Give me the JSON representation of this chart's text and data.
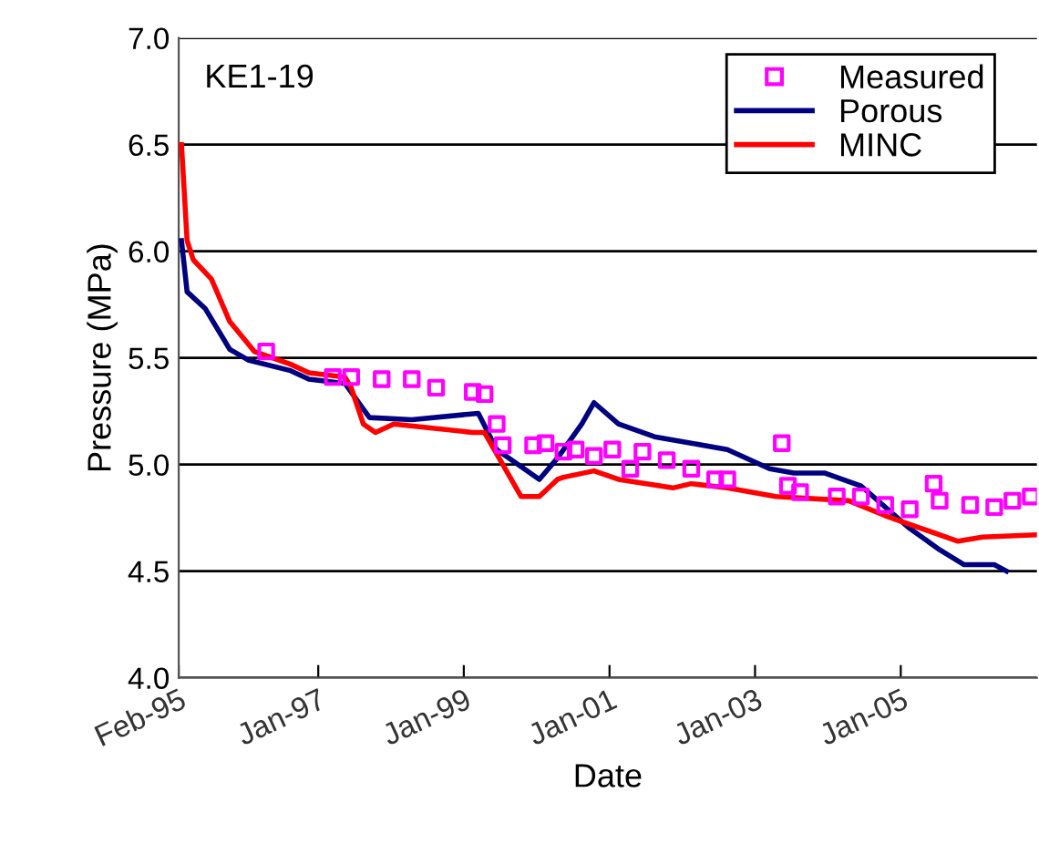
{
  "chart_data": {
    "type": "line",
    "xlabel": "Date",
    "ylabel": "Pressure (MPa)",
    "annotations": [
      "KE1-19"
    ],
    "xlim": [
      "1995-02-01",
      "2006-11-15"
    ],
    "xticks": [
      {
        "value": "1995-02-01",
        "label": "Feb-95"
      },
      {
        "value": "1997-01-01",
        "label": "Jan-97"
      },
      {
        "value": "1999-01-01",
        "label": "Jan-99"
      },
      {
        "value": "2001-01-01",
        "label": "Jan-01"
      },
      {
        "value": "2003-01-01",
        "label": "Jan-03"
      },
      {
        "value": "2005-01-01",
        "label": "Jan-05"
      }
    ],
    "ylim": [
      4.0,
      7.0
    ],
    "yticks": [
      {
        "value": 4,
        "label": "4.0"
      },
      {
        "value": 4.5,
        "label": "4.5"
      },
      {
        "value": 5,
        "label": "5.0"
      },
      {
        "value": 5.5,
        "label": "5.5"
      },
      {
        "value": 6,
        "label": "6.0"
      },
      {
        "value": 6.5,
        "label": "6.5"
      },
      {
        "value": 7,
        "label": "7.0"
      }
    ],
    "grid": "y",
    "legend": "top right",
    "series": [
      {
        "name": "Measured",
        "type": "scatter",
        "marker": "square",
        "color": "#ff00ff",
        "x": [
          "1996-04",
          "1997-03",
          "1997-06",
          "1997-11",
          "1998-04",
          "1998-08",
          "1999-02",
          "1999-04",
          "1999-06",
          "1999-07",
          "1999-12",
          "2000-02",
          "2000-05",
          "2000-07",
          "2000-10",
          "2001-01",
          "2001-04",
          "2001-06",
          "2001-10",
          "2002-02",
          "2002-06",
          "2002-08",
          "2003-05",
          "2003-06",
          "2003-08",
          "2004-02",
          "2004-06",
          "2004-10",
          "2005-02",
          "2005-06",
          "2005-07",
          "2005-12",
          "2006-04",
          "2006-07",
          "2006-10"
        ],
        "values": [
          5.53,
          5.41,
          5.41,
          5.4,
          5.4,
          5.36,
          5.34,
          5.33,
          5.19,
          5.09,
          5.09,
          5.1,
          5.06,
          5.07,
          5.04,
          5.07,
          4.98,
          5.06,
          5.02,
          4.98,
          4.93,
          4.93,
          5.1,
          4.9,
          4.87,
          4.85,
          4.85,
          4.81,
          4.79,
          4.91,
          4.83,
          4.81,
          4.8,
          4.83,
          4.85
        ]
      },
      {
        "name": "Porous",
        "color": "#000080",
        "x": [
          "1995-02",
          "1995-03",
          "1995-06",
          "1995-10",
          "1996-01",
          "1996-08",
          "1996-11",
          "1997-05",
          "1997-08",
          "1997-09",
          "1998-04",
          "1999-03",
          "1999-06",
          "2000-01",
          "2000-04",
          "2000-08",
          "2000-10",
          "2001-02",
          "2001-08",
          "2002-02",
          "2002-08",
          "2003-03",
          "2003-07",
          "2003-12",
          "2004-06",
          "2005-02",
          "2005-07",
          "2005-11",
          "2006-04",
          "2006-06"
        ],
        "values": [
          6.05,
          5.81,
          5.73,
          5.54,
          5.49,
          5.44,
          5.4,
          5.38,
          5.26,
          5.22,
          5.21,
          5.24,
          5.07,
          4.93,
          5.03,
          5.19,
          5.29,
          5.19,
          5.13,
          5.1,
          5.07,
          4.98,
          4.96,
          4.96,
          4.9,
          4.7,
          4.6,
          4.53,
          4.53,
          4.5
        ]
      },
      {
        "name": "MINC",
        "color": "#ff0000",
        "x": [
          "1995-02",
          "1995-03",
          "1995-04",
          "1995-07",
          "1995-10",
          "1996-02",
          "1996-08",
          "1996-11",
          "1997-05",
          "1997-06",
          "1997-08",
          "1997-10",
          "1998-01",
          "1999-02",
          "1999-04",
          "1999-10",
          "2000-01",
          "2000-04",
          "2000-05",
          "2000-10",
          "2001-02",
          "2001-11",
          "2002-02",
          "2002-08",
          "2003-04",
          "2004-04",
          "2004-10",
          "2005-04",
          "2005-10",
          "2006-02",
          "2006-11"
        ],
        "values": [
          6.5,
          6.05,
          5.96,
          5.87,
          5.67,
          5.53,
          5.47,
          5.43,
          5.41,
          5.36,
          5.19,
          5.15,
          5.19,
          5.15,
          5.15,
          4.85,
          4.85,
          4.93,
          4.94,
          4.97,
          4.93,
          4.89,
          4.91,
          4.89,
          4.85,
          4.83,
          4.76,
          4.7,
          4.64,
          4.66,
          4.67
        ]
      }
    ]
  }
}
